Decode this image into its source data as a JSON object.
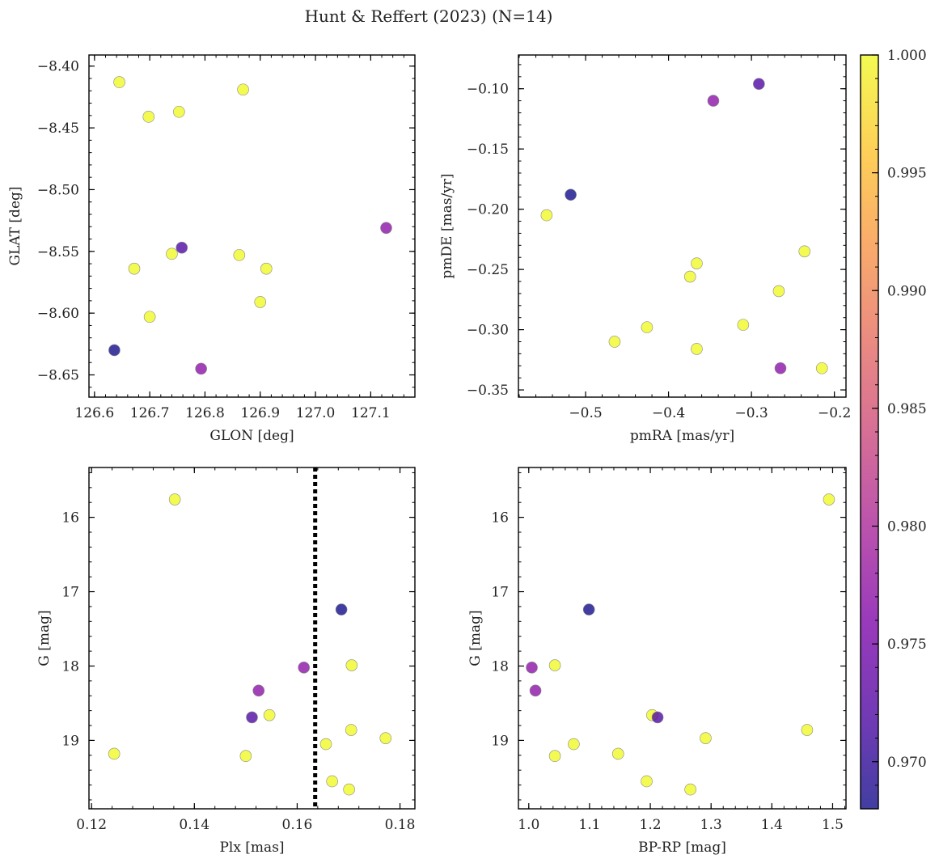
{
  "figure": {
    "title": "Hunt & Reffert (2023) (N=14)"
  },
  "colorbar": {
    "colormap": "plasma",
    "range": [
      0.968,
      1.0
    ],
    "tick_values": [
      0.97,
      0.975,
      0.98,
      0.985,
      0.99,
      0.995,
      1.0
    ],
    "tick_labels": [
      "0.970",
      "0.975",
      "0.980",
      "0.985",
      "0.990",
      "0.995",
      "1.000"
    ]
  },
  "chart_data": [
    {
      "type": "scatter",
      "xlabel": "GLON [deg]",
      "ylabel": "GLAT [deg]",
      "xlim": [
        126.59,
        127.18
      ],
      "ylim": [
        -8.668,
        -8.391
      ],
      "xticks": [
        126.6,
        126.7,
        126.8,
        126.9,
        127.0,
        127.1
      ],
      "xtick_labels": [
        "126.6",
        "126.7",
        "126.8",
        "126.9",
        "127.0",
        "127.1"
      ],
      "yticks": [
        -8.4,
        -8.45,
        -8.5,
        -8.55,
        -8.6,
        -8.65
      ],
      "ytick_labels": [
        "−8.40",
        "−8.45",
        "−8.50",
        "−8.55",
        "−8.60",
        "−8.65"
      ],
      "x_minor_step": 0.02,
      "y_minor_step": 0.01,
      "x": [
        126.645,
        126.869,
        126.698,
        126.753,
        126.862,
        126.911,
        126.672,
        126.74,
        126.758,
        126.9,
        126.7,
        126.636,
        126.793,
        127.128
      ],
      "y": [
        -8.413,
        -8.419,
        -8.441,
        -8.437,
        -8.553,
        -8.564,
        -8.564,
        -8.552,
        -8.547,
        -8.591,
        -8.603,
        -8.63,
        -8.645,
        -8.531
      ],
      "c": [
        1.0,
        1.0,
        1.0,
        1.0,
        1.0,
        1.0,
        1.0,
        1.0,
        0.972,
        1.0,
        1.0,
        0.968,
        0.977,
        0.977
      ]
    },
    {
      "type": "scatter",
      "xlabel": "pmRA [mas/yr]",
      "ylabel": "pmDE [mas/yr]",
      "xlim": [
        -0.581,
        -0.186
      ],
      "ylim": [
        -0.356,
        -0.072
      ],
      "xticks": [
        -0.5,
        -0.4,
        -0.3,
        -0.2
      ],
      "xtick_labels": [
        "−0.5",
        "−0.4",
        "−0.3",
        "−0.2"
      ],
      "yticks": [
        -0.1,
        -0.15,
        -0.2,
        -0.25,
        -0.3,
        -0.35
      ],
      "ytick_labels": [
        "−0.10",
        "−0.15",
        "−0.20",
        "−0.25",
        "−0.30",
        "−0.35"
      ],
      "x_minor_step": 0.02,
      "y_minor_step": 0.01,
      "x": [
        -0.547,
        -0.366,
        -0.374,
        -0.236,
        -0.267,
        -0.465,
        -0.426,
        -0.31,
        -0.366,
        -0.215,
        -0.291,
        -0.346,
        -0.518,
        -0.265
      ],
      "y": [
        -0.205,
        -0.245,
        -0.256,
        -0.235,
        -0.268,
        -0.31,
        -0.298,
        -0.296,
        -0.316,
        -0.332,
        -0.096,
        -0.11,
        -0.188,
        -0.332
      ],
      "c": [
        1.0,
        1.0,
        1.0,
        1.0,
        1.0,
        1.0,
        1.0,
        1.0,
        1.0,
        1.0,
        0.972,
        0.977,
        0.968,
        0.977
      ]
    },
    {
      "type": "scatter",
      "xlabel": "Plx [mas]",
      "ylabel": "G [mag]",
      "y_inverted": true,
      "xlim": [
        0.1195,
        0.1829
      ],
      "ylim": [
        19.92,
        15.33
      ],
      "xticks": [
        0.12,
        0.14,
        0.16,
        0.18
      ],
      "xtick_labels": [
        "0.12",
        "0.14",
        "0.16",
        "0.18"
      ],
      "yticks": [
        16,
        17,
        18,
        19
      ],
      "ytick_labels": [
        "16",
        "17",
        "18",
        "19"
      ],
      "x_minor_step": 0.004,
      "y_minor_step": 0.2,
      "vline": {
        "x": 0.1635,
        "style": "dotted"
      },
      "x": [
        0.1362,
        0.1706,
        0.1546,
        0.1705,
        0.1772,
        0.1244,
        0.15,
        0.1656,
        0.1668,
        0.1701,
        0.1686,
        0.1613,
        0.1525,
        0.1512
      ],
      "y": [
        15.76,
        17.99,
        18.66,
        18.86,
        18.97,
        19.18,
        19.21,
        19.05,
        19.55,
        19.66,
        17.24,
        18.02,
        18.33,
        18.69
      ],
      "c": [
        1.0,
        1.0,
        1.0,
        1.0,
        1.0,
        1.0,
        1.0,
        1.0,
        1.0,
        1.0,
        0.968,
        0.977,
        0.977,
        0.972
      ]
    },
    {
      "type": "scatter",
      "xlabel": "BP-RP [mag]",
      "ylabel": "G [mag]",
      "y_inverted": true,
      "xlim": [
        0.983,
        1.522
      ],
      "ylim": [
        19.92,
        15.33
      ],
      "xticks": [
        1.0,
        1.1,
        1.2,
        1.3,
        1.4,
        1.5
      ],
      "xtick_labels": [
        "1.0",
        "1.1",
        "1.2",
        "1.3",
        "1.4",
        "1.5"
      ],
      "yticks": [
        16,
        17,
        18,
        19
      ],
      "ytick_labels": [
        "16",
        "17",
        "18",
        "19"
      ],
      "x_minor_step": 0.02,
      "y_minor_step": 0.2,
      "x": [
        1.494,
        1.043,
        1.203,
        1.458,
        1.291,
        1.147,
        1.043,
        1.074,
        1.194,
        1.266,
        1.099,
        1.005,
        1.011,
        1.212
      ],
      "y": [
        15.76,
        17.99,
        18.66,
        18.86,
        18.97,
        19.18,
        19.21,
        19.05,
        19.55,
        19.66,
        17.24,
        18.02,
        18.33,
        18.69
      ],
      "c": [
        1.0,
        1.0,
        1.0,
        1.0,
        1.0,
        1.0,
        1.0,
        1.0,
        1.0,
        1.0,
        0.968,
        0.977,
        0.977,
        0.972
      ]
    }
  ]
}
